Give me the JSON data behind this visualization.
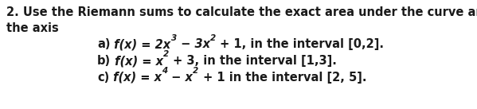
{
  "background_color": "#ffffff",
  "text_color": "#1a1a1a",
  "line1": "2. Use the Riemann sums to calculate the exact area under the curve and above",
  "line2": "the axis",
  "main_fontsize": 10.5,
  "sup_fontsize": 7.5,
  "indent": 0.205,
  "item_a": {
    "label": "a)",
    "parts": [
      {
        "text": " f(x) = 2x",
        "style": "italic",
        "weight": "bold"
      },
      {
        "text": "3",
        "super": true,
        "style": "italic",
        "weight": "bold"
      },
      {
        "text": " − 3x",
        "style": "italic",
        "weight": "bold"
      },
      {
        "text": "2",
        "super": true,
        "style": "italic",
        "weight": "bold"
      },
      {
        "text": " + 1, in the interval [0,2].",
        "style": "normal",
        "weight": "bold"
      }
    ]
  },
  "item_b": {
    "label": "b)",
    "parts": [
      {
        "text": " f(x) = x",
        "style": "italic",
        "weight": "bold"
      },
      {
        "text": "2",
        "super": true,
        "style": "italic",
        "weight": "bold"
      },
      {
        "text": " + 3, in the interval [1,3].",
        "style": "normal",
        "weight": "bold"
      }
    ]
  },
  "item_c": {
    "label": "c)",
    "parts": [
      {
        "text": " f(x) = x",
        "style": "italic",
        "weight": "bold"
      },
      {
        "text": "4",
        "super": true,
        "style": "italic",
        "weight": "bold"
      },
      {
        "text": " − x",
        "style": "italic",
        "weight": "bold"
      },
      {
        "text": "2",
        "super": true,
        "style": "italic",
        "weight": "bold"
      },
      {
        "text": " + 1 in the interval [2, 5].",
        "style": "normal",
        "weight": "bold"
      }
    ]
  }
}
